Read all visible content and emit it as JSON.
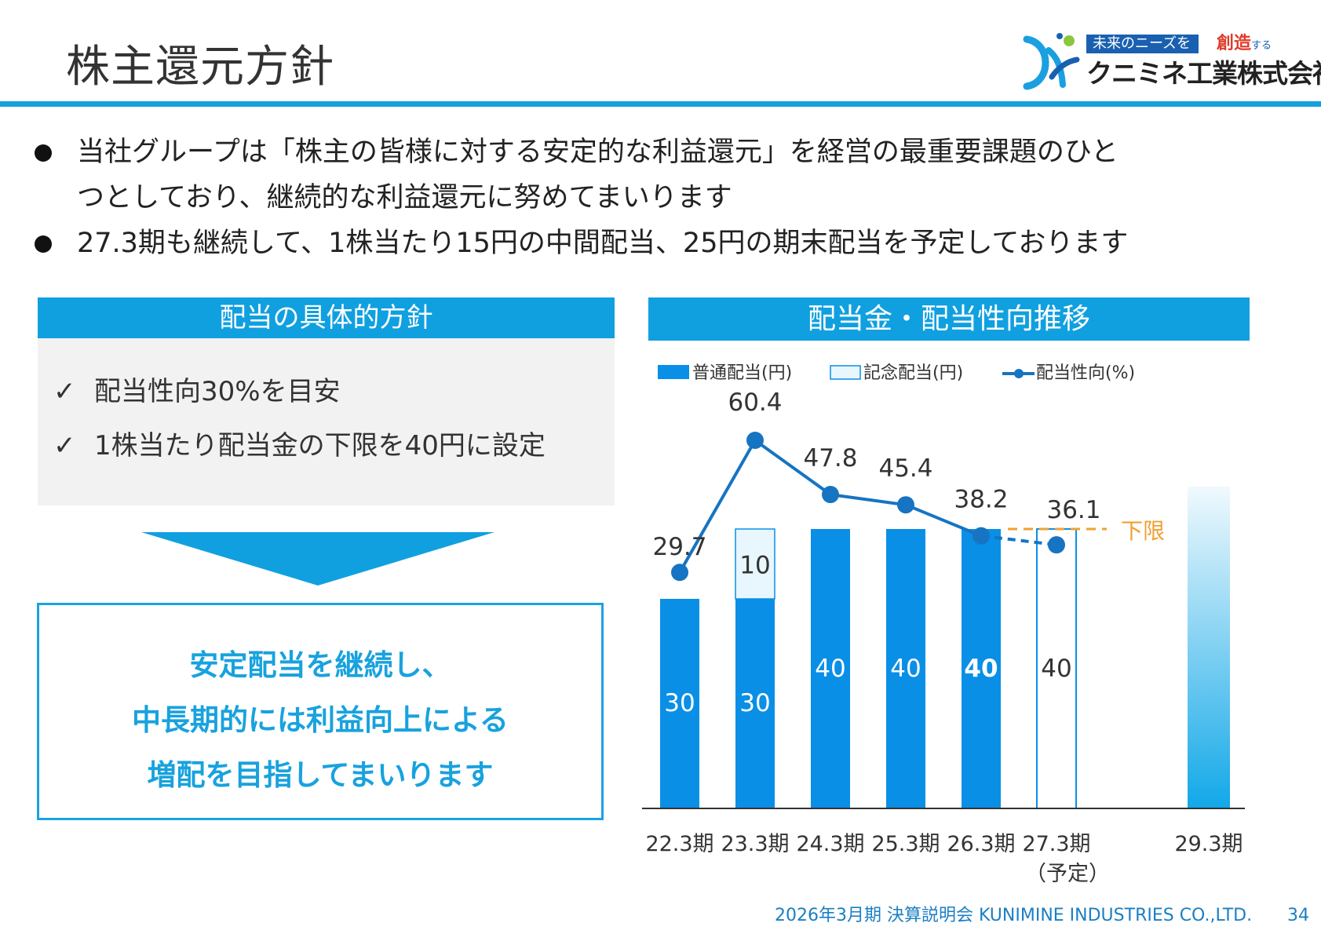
{
  "header": {
    "title": "株主還元方針",
    "logo": {
      "tagline": "未来のニーズを",
      "tagline_accent": "創造",
      "tagline_suffix": "する",
      "company": "クニミネ工業株式会社"
    }
  },
  "bullets": [
    {
      "line1": "当社グループは「株主の皆様に対する安定的な利益還元」を経営の最重要課題のひと",
      "line2": "つとしており、継続的な利益還元に努めてまいります"
    },
    {
      "line1": "27.3期も継続して、1株当たり15円の中間配当、25円の期末配当を予定しております"
    }
  ],
  "policy": {
    "heading": "配当の具体的方針",
    "check_mark": "✓",
    "items": [
      "配当性向30%を目安",
      "1株当たり配当金の下限を40円に設定"
    ],
    "conclusion": [
      "安定配当を継続し、",
      "中長期的には利益向上による",
      "増配を目指してまいります"
    ]
  },
  "chart_heading": "配当金・配当性向推移",
  "chart_data": {
    "type": "bar",
    "categories": [
      "22.3期",
      "23.3期",
      "24.3期",
      "25.3期",
      "26.3期",
      "27.3期",
      "29.3期"
    ],
    "category_sublabels": [
      "",
      "",
      "",
      "",
      "",
      "（予定）",
      ""
    ],
    "series": [
      {
        "name": "普通配当(円)",
        "values": [
          30,
          30,
          40,
          40,
          40,
          40,
          null
        ]
      },
      {
        "name": "記念配当(円)",
        "values": [
          0,
          10,
          0,
          0,
          0,
          0,
          null
        ]
      },
      {
        "name": "配当性向(%)",
        "type": "line",
        "values": [
          29.7,
          60.4,
          47.8,
          45.4,
          38.2,
          36.1,
          null
        ]
      }
    ],
    "bar_labels": [
      "30",
      "30",
      "40",
      "40",
      "40",
      "40",
      ""
    ],
    "bar_label_bold": [
      false,
      false,
      false,
      false,
      true,
      false,
      false
    ],
    "memorial_labels": [
      "",
      "10",
      "",
      "",
      "",
      "",
      ""
    ],
    "payout_labels": [
      "29.7",
      "60.4",
      "47.8",
      "45.4",
      "38.2",
      "36.1",
      ""
    ],
    "forecast_index": 5,
    "floor_line": {
      "value": 40,
      "label": "下限"
    },
    "target_bar_index": 6,
    "legend_placement": "top",
    "colors": {
      "regular": "#0a8fe6",
      "memorial_fill": "#e8f6fd",
      "memorial_border": "#0a8fe6",
      "payout_line": "#1674c2",
      "floor_line": "#f0a032",
      "target_top": "#f0f9fd",
      "target_bottom": "#12a8e8"
    }
  },
  "footer": {
    "text": "2026年3月期 決算説明会 KUNIMINE INDUSTRIES CO.,LTD.",
    "page": "34"
  }
}
